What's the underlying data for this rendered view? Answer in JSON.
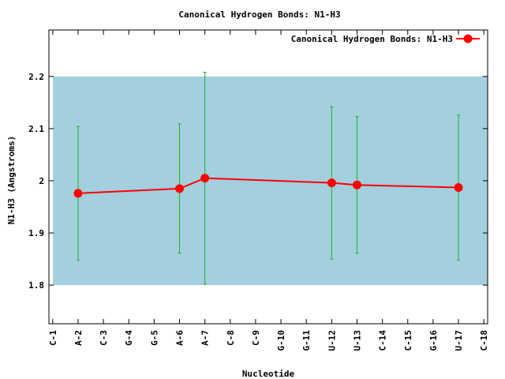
{
  "chart_data": {
    "type": "line",
    "title": "Canonical Hydrogen Bonds: N1-H3",
    "x_label": "Nucleotide",
    "y_label": "N1-H3 (Angstroms)",
    "xlim": [
      0.85,
      18.15
    ],
    "xticks": [
      {
        "value": 1,
        "label": "C-1"
      },
      {
        "value": 2,
        "label": "A-2"
      },
      {
        "value": 3,
        "label": "C-3"
      },
      {
        "value": 4,
        "label": "G-4"
      },
      {
        "value": 5,
        "label": "G-5"
      },
      {
        "value": 6,
        "label": "A-6"
      },
      {
        "value": 7,
        "label": "A-7"
      },
      {
        "value": 8,
        "label": "C-8"
      },
      {
        "value": 9,
        "label": "C-9"
      },
      {
        "value": 10,
        "label": "G-10"
      },
      {
        "value": 11,
        "label": "G-11"
      },
      {
        "value": 12,
        "label": "U-12"
      },
      {
        "value": 13,
        "label": "U-13"
      },
      {
        "value": 14,
        "label": "C-14"
      },
      {
        "value": 15,
        "label": "C-15"
      },
      {
        "value": 16,
        "label": "G-16"
      },
      {
        "value": 17,
        "label": "U-17"
      },
      {
        "value": 18,
        "label": "C-18"
      }
    ],
    "ylim": [
      1.726,
      2.289
    ],
    "yticks": [
      1.8,
      1.9,
      2,
      2.1,
      2.2
    ],
    "band": [
      1.8,
      2.2
    ],
    "band_color": "#a3cfde",
    "error_color": "#20b030",
    "legend": "top-right",
    "series": [
      {
        "name": "Canonical Hydrogen Bonds: N1-H3",
        "color": "#ff0000",
        "x": [
          2,
          6,
          7,
          12,
          13,
          17
        ],
        "values": [
          1.976,
          1.985,
          2.005,
          1.996,
          1.992,
          1.987
        ],
        "errors": [
          0.128,
          0.124,
          0.203,
          0.146,
          0.131,
          0.139
        ]
      }
    ]
  }
}
